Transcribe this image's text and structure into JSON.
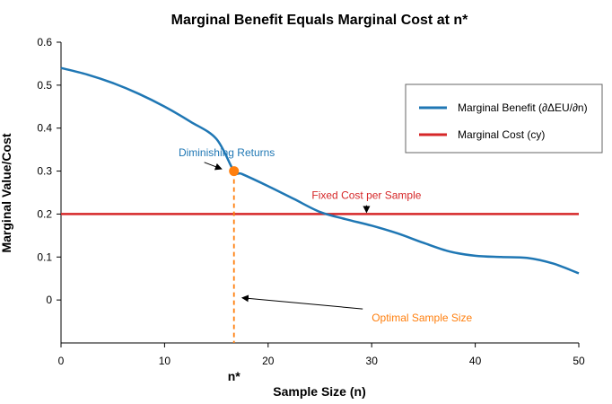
{
  "chart_data": {
    "type": "line",
    "title": "Marginal Benefit Equals Marginal Cost at n*",
    "xlabel": "Sample Size (n)",
    "ylabel": "Marginal Value/Cost",
    "xlim": [
      0,
      50
    ],
    "ylim": [
      -0.1,
      0.6
    ],
    "xticks": [
      "0",
      "10",
      "20",
      "30",
      "40",
      "50"
    ],
    "yticks": [
      "0",
      "0.1",
      "0.2",
      "0.3",
      "0.4",
      "0.5",
      "0.6"
    ],
    "grid": false,
    "legend_position": "upper-right",
    "series": [
      {
        "name": "Marginal Benefit (∂ΔEU/∂n)",
        "color": "#1f77b4",
        "x": [
          0,
          2.5,
          5,
          7.5,
          10,
          12.5,
          15,
          16.7,
          17.5,
          20,
          22.5,
          25,
          27.5,
          30,
          32.5,
          35,
          37.5,
          40,
          42.5,
          45,
          47.5,
          50
        ],
        "y": [
          0.54,
          0.525,
          0.505,
          0.48,
          0.45,
          0.415,
          0.375,
          0.3,
          0.293,
          0.265,
          0.235,
          0.205,
          0.188,
          0.173,
          0.155,
          0.133,
          0.113,
          0.103,
          0.1,
          0.098,
          0.085,
          0.062
        ]
      },
      {
        "name": "Marginal Cost (cy)",
        "color": "#d62728",
        "x": [
          0,
          50
        ],
        "y": [
          0.2,
          0.2
        ]
      }
    ],
    "optimal_point": {
      "x": 16.7,
      "y": 0.3,
      "color": "#ff7f0e",
      "label": "n*"
    },
    "annotations": [
      {
        "text": "Diminishing Returns",
        "color": "#1f77b4",
        "text_x": 16,
        "text_y": 0.335,
        "arrow_x": 15.5,
        "arrow_y": 0.305
      },
      {
        "text": "Fixed Cost per Sample",
        "color": "#d62728",
        "text_x": 29.5,
        "text_y": 0.235,
        "arrow_x": 29.5,
        "arrow_y": 0.204
      },
      {
        "text": "Optimal Sample Size",
        "color": "#ff7f0e",
        "text_x": 30,
        "text_y": -0.05,
        "arrow_x": 17.5,
        "arrow_y": 0.005
      }
    ]
  }
}
